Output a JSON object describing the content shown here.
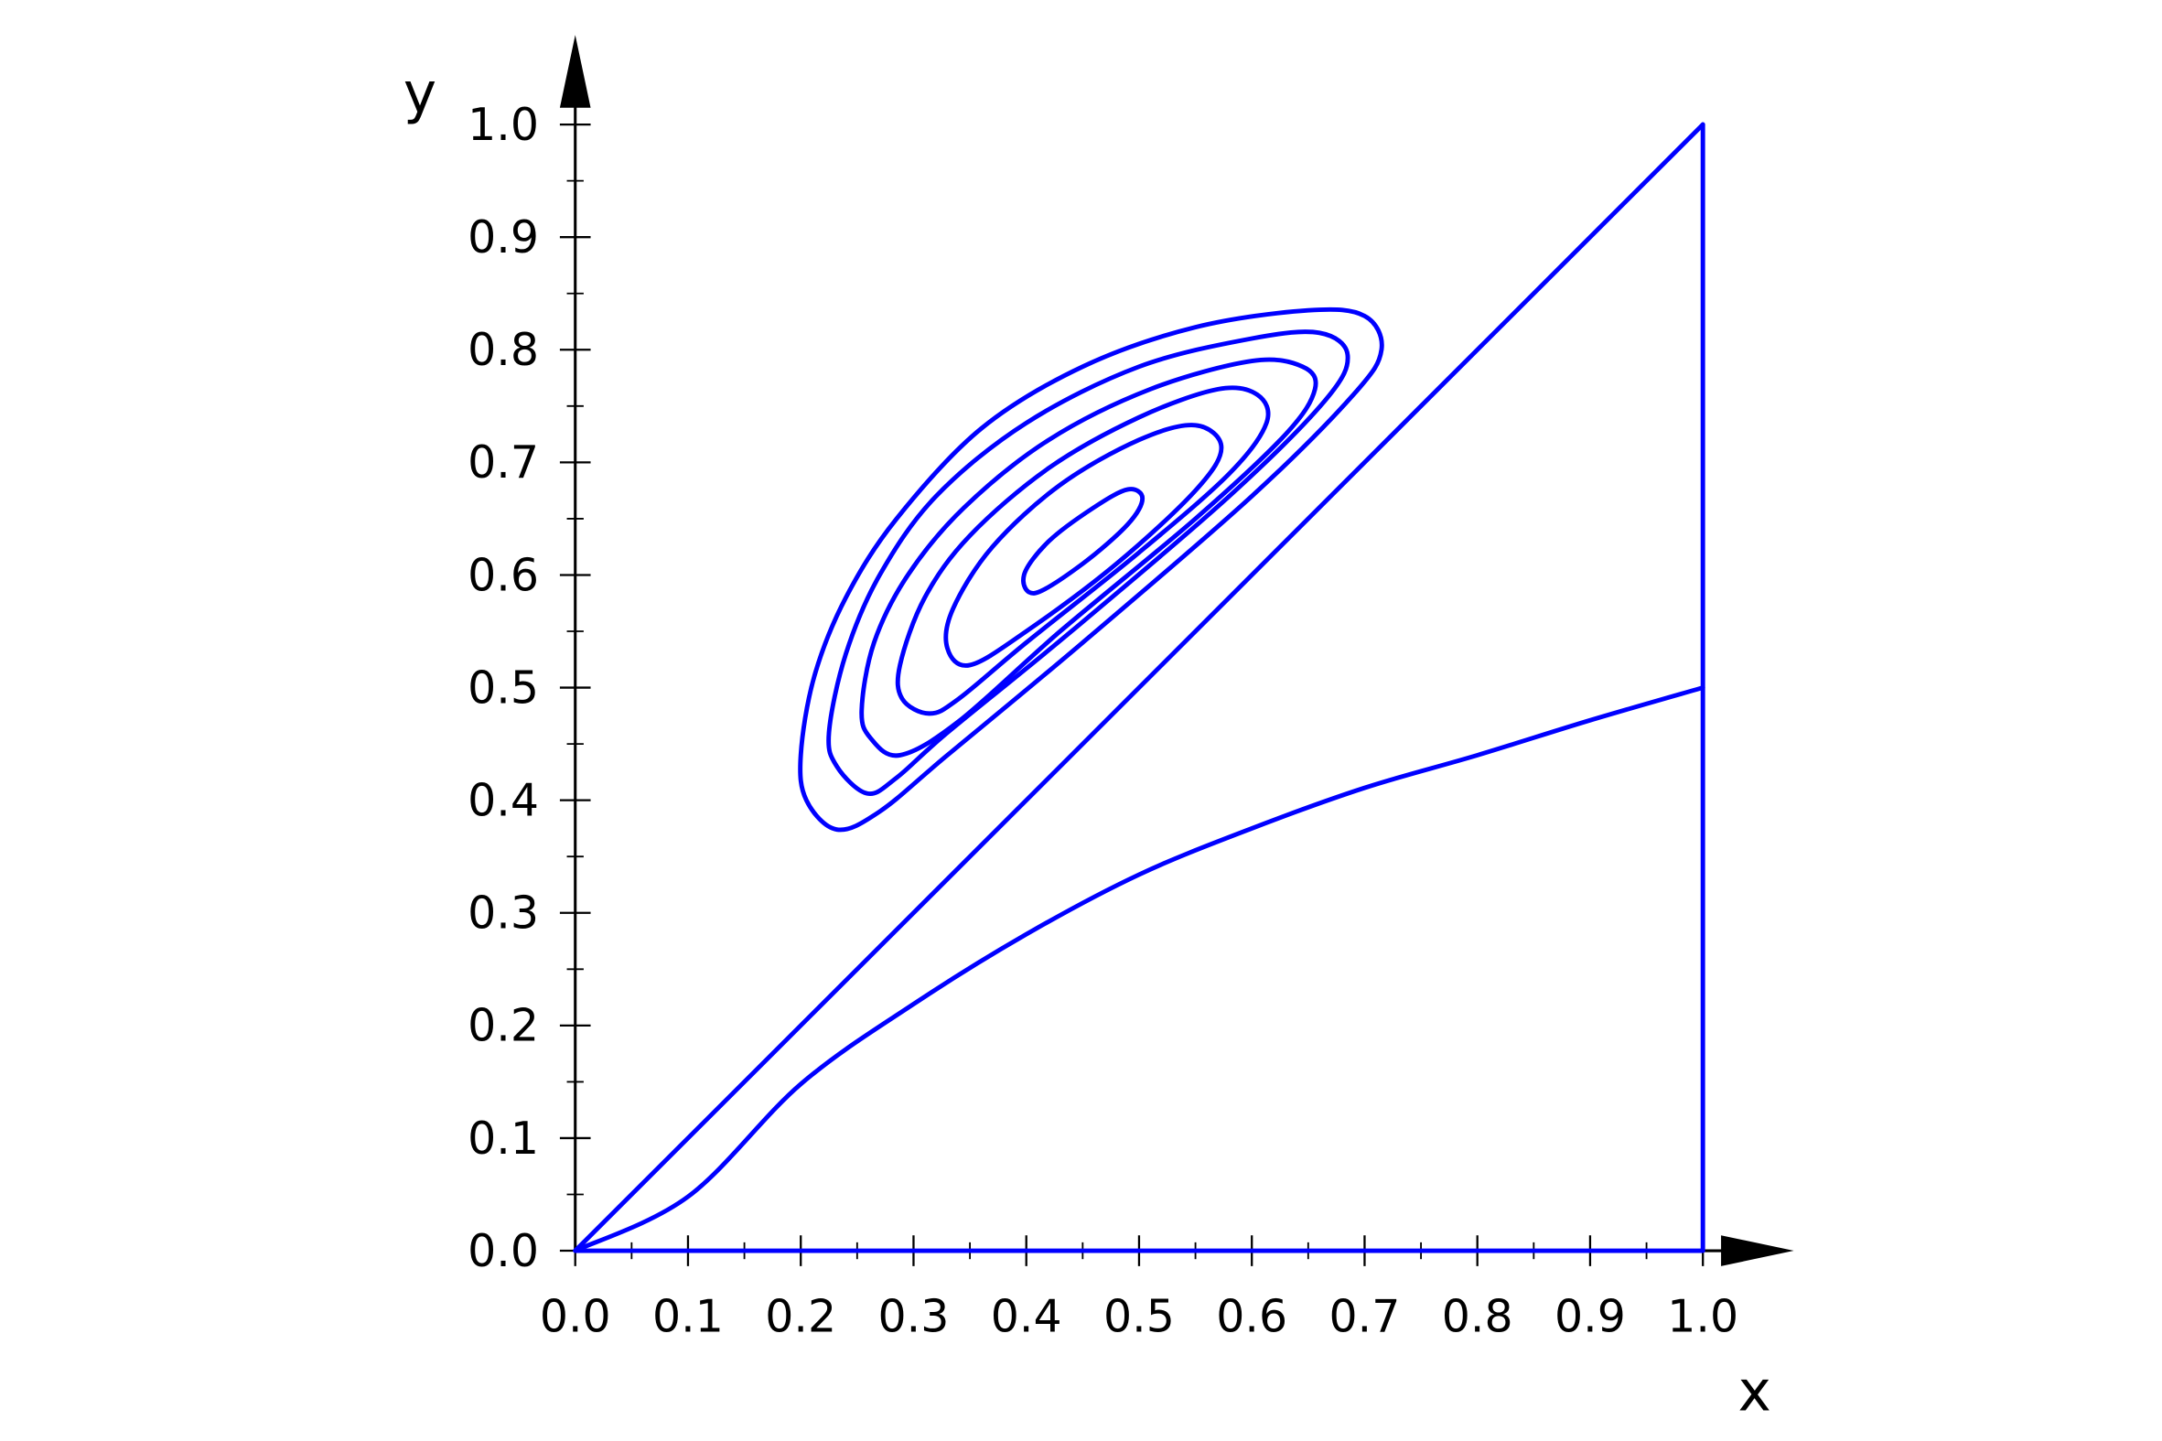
{
  "chart_data": {
    "type": "line",
    "xlabel": "x",
    "ylabel": "y",
    "xlim": [
      0,
      1
    ],
    "ylim": [
      0,
      1
    ],
    "xticks": [
      {
        "value": 0,
        "label": "0.0"
      },
      0.1,
      0.2,
      0.3,
      0.4,
      0.5,
      0.6,
      0.7,
      0.8,
      0.9,
      {
        "value": 1,
        "label": "1.0"
      }
    ],
    "yticks": [
      {
        "value": 0,
        "label": "0.0"
      },
      0.1,
      0.2,
      0.3,
      0.4,
      0.5,
      0.6,
      0.7,
      0.8,
      0.9,
      {
        "value": 1,
        "label": "1.0"
      }
    ],
    "xminorticks": [
      0.05,
      0.15,
      0.25,
      0.35,
      0.45,
      0.55,
      0.65,
      0.75,
      0.85,
      0.95
    ],
    "yminorticks": [
      0.05,
      0.15,
      0.25,
      0.35,
      0.45,
      0.55,
      0.65,
      0.75,
      0.85,
      0.95
    ],
    "series": [
      {
        "color": "#0000ff",
        "closed": false,
        "x": [
          0,
          1
        ],
        "values": [
          0,
          1
        ]
      },
      {
        "color": "#0000ff",
        "closed": false,
        "x": [
          1,
          1
        ],
        "values": [
          0,
          1
        ]
      },
      {
        "color": "#0000ff",
        "closed": false,
        "x": [
          0,
          1
        ],
        "values": [
          0,
          0
        ]
      },
      {
        "color": "#0000ff",
        "closed": false,
        "x": [
          0,
          0.1,
          0.2,
          0.3,
          0.4,
          0.5,
          0.6,
          0.7,
          0.8,
          0.9,
          1
        ],
        "values": [
          0,
          0.048,
          0.148,
          0.219,
          0.281,
          0.334,
          0.375,
          0.411,
          0.44,
          0.471,
          0.5
        ]
      },
      {
        "color": "#0000ff",
        "closed": true,
        "x": [
          0.232,
          0.205,
          0.2,
          0.212,
          0.24,
          0.285,
          0.36,
          0.45,
          0.55,
          0.65,
          0.7,
          0.715,
          0.69,
          0.6,
          0.45,
          0.33,
          0.27
        ],
        "values": [
          0.374,
          0.4,
          0.44,
          0.51,
          0.58,
          0.65,
          0.73,
          0.785,
          0.82,
          0.835,
          0.83,
          0.8,
          0.76,
          0.67,
          0.54,
          0.44,
          0.39
        ]
      },
      {
        "color": "#0000ff",
        "closed": true,
        "x": [
          0.259,
          0.232,
          0.225,
          0.24,
          0.27,
          0.32,
          0.4,
          0.5,
          0.6,
          0.66,
          0.685,
          0.665,
          0.58,
          0.44,
          0.33,
          0.285
        ],
        "values": [
          0.406,
          0.43,
          0.46,
          0.53,
          0.6,
          0.67,
          0.735,
          0.785,
          0.81,
          0.815,
          0.795,
          0.755,
          0.67,
          0.55,
          0.46,
          0.42
        ]
      },
      {
        "color": "#0000ff",
        "closed": true,
        "x": [
          0.288,
          0.262,
          0.254,
          0.265,
          0.295,
          0.345,
          0.42,
          0.51,
          0.6,
          0.645,
          0.656,
          0.63,
          0.55,
          0.43,
          0.34
        ],
        "values": [
          0.44,
          0.455,
          0.48,
          0.54,
          0.6,
          0.66,
          0.72,
          0.765,
          0.79,
          0.785,
          0.765,
          0.725,
          0.65,
          0.55,
          0.47
        ]
      },
      {
        "color": "#0000ff",
        "closed": true,
        "x": [
          0.314,
          0.29,
          0.288,
          0.31,
          0.35,
          0.42,
          0.5,
          0.57,
          0.605,
          0.613,
          0.58,
          0.5,
          0.4,
          0.34
        ],
        "values": [
          0.477,
          0.49,
          0.52,
          0.58,
          0.635,
          0.695,
          0.74,
          0.765,
          0.76,
          0.735,
          0.69,
          0.62,
          0.54,
          0.49
        ]
      },
      {
        "color": "#0000ff",
        "closed": true,
        "x": [
          0.35,
          0.33,
          0.335,
          0.37,
          0.43,
          0.5,
          0.55,
          0.573,
          0.55,
          0.48,
          0.4
        ],
        "values": [
          0.52,
          0.535,
          0.57,
          0.625,
          0.68,
          0.72,
          0.733,
          0.713,
          0.675,
          0.61,
          0.55
        ]
      },
      {
        "color": "#0000ff",
        "closed": true,
        "x": [
          0.408,
          0.398,
          0.42,
          0.46,
          0.49,
          0.503,
          0.49,
          0.45
        ],
        "values": [
          0.584,
          0.6,
          0.63,
          0.66,
          0.676,
          0.668,
          0.645,
          0.61
        ]
      }
    ]
  }
}
